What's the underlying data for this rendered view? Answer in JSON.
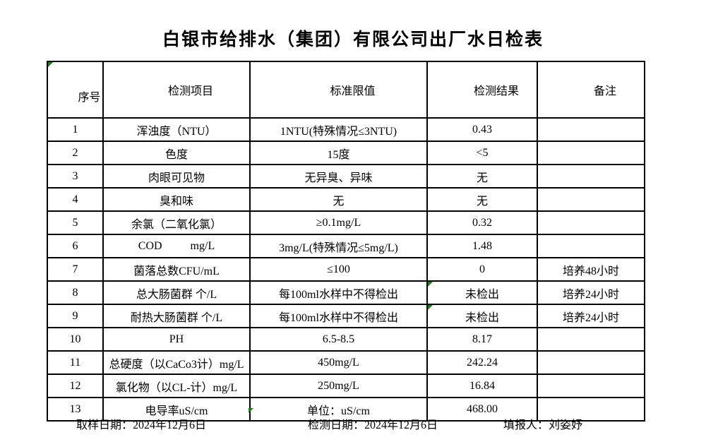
{
  "title": "白银市给排水（集团）有限公司出厂水日检表",
  "colors": {
    "marker_green": "#1e7b1e",
    "border": "#000000",
    "background": "#ffffff"
  },
  "table": {
    "headers": [
      "序号",
      "检测项目",
      "标准限值",
      "检测结果",
      "备注"
    ],
    "rows": [
      {
        "no": "1",
        "item": "浑浊度（NTU）",
        "limit": "1NTU(特殊情况≤3NTU)",
        "result": "0.43",
        "remark": ""
      },
      {
        "no": "2",
        "item": "色度",
        "limit": "15度",
        "result": "<5",
        "remark": ""
      },
      {
        "no": "3",
        "item": "肉眼可见物",
        "limit": "无异臭、异味",
        "result": "无",
        "remark": ""
      },
      {
        "no": "4",
        "item": "臭和味",
        "limit": "无",
        "result": "无",
        "remark": ""
      },
      {
        "no": "5",
        "item": "余氯（二氧化氯）",
        "limit": "≥0.1mg/L",
        "result": "0.32",
        "remark": ""
      },
      {
        "no": "6",
        "item": "COD          mg/L",
        "limit": "3mg/L(特殊情况≤5mg/L)",
        "result": "1.48",
        "remark": ""
      },
      {
        "no": "7",
        "item": "菌落总数CFU/mL",
        "limit": "≤100",
        "result": "0",
        "remark": "培养48小时"
      },
      {
        "no": "8",
        "item": "总大肠菌群 个/L",
        "limit": "每100ml水样中不得检出",
        "result": "未检出",
        "remark": "培养24小时",
        "marker": true
      },
      {
        "no": "9",
        "item": "耐热大肠菌群 个/L",
        "limit": "每100ml水样中不得检出",
        "result": "未检出",
        "remark": "培养24小时",
        "marker": true
      },
      {
        "no": "10",
        "item": "PH",
        "limit": "6.5-8.5",
        "result": "8.17",
        "remark": ""
      },
      {
        "no": "11",
        "item": "总硬度（以CaCo3计）mg/L",
        "limit": "450mg/L",
        "result": "242.24",
        "remark": ""
      },
      {
        "no": "12",
        "item": "氯化物（以CL-计）mg/L",
        "limit": "250mg/L",
        "result": "16.84",
        "remark": ""
      },
      {
        "no": "13",
        "item": "电导率uS/cm",
        "limit": "单位：uS/cm",
        "result": "468.00",
        "remark": ""
      }
    ]
  },
  "footer": {
    "sampling": {
      "label": "取样日期：",
      "value": "2024年12月6日"
    },
    "testing": {
      "label": "检测日期：",
      "value": "2024年12月6日"
    },
    "reporter": {
      "label": "填报人：",
      "value": "刘姿妤"
    }
  }
}
